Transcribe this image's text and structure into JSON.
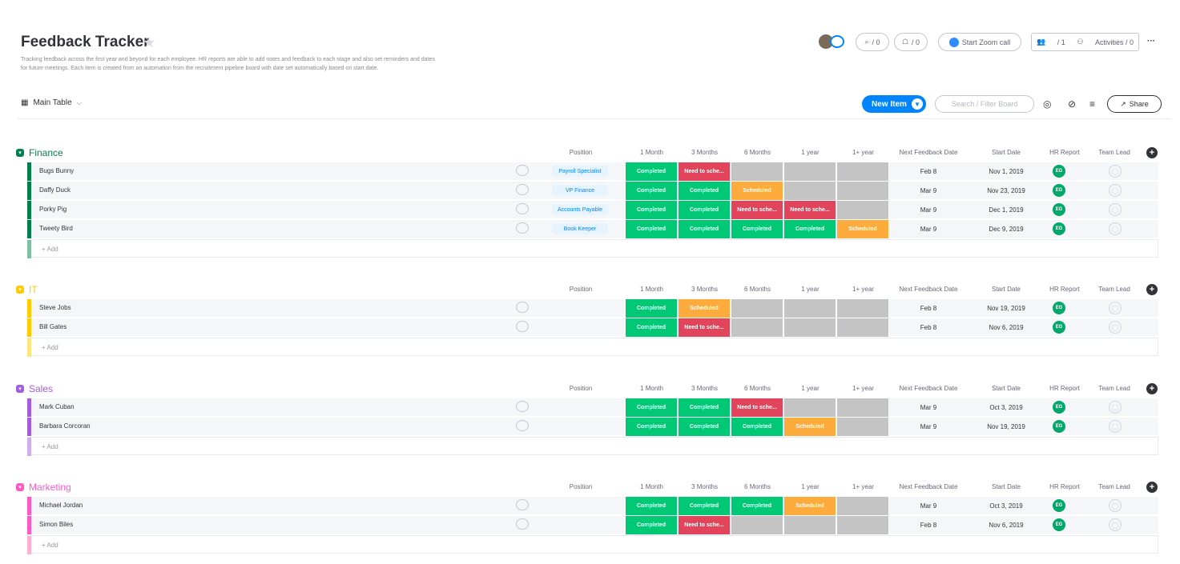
{
  "board": {
    "title": "Feedback Tracker",
    "description": "Tracking feedback across the first year and beyond for each employee. HR reports are able to add notes and feedback to each stage and also set reminders and dates for future meetings. Each item is created from an automation from the recruitment pipeline board with date set automatically based on start date.",
    "view_label": "Main Table"
  },
  "topbar": {
    "activity_count": "/ 0",
    "updates_count": "/ 0",
    "zoom_label": "Start Zoom call",
    "members_count": "/ 1",
    "activities_label": "Activities / 0",
    "more_label": "···"
  },
  "toolbar": {
    "new_item": "New Item",
    "search_placeholder": "Search / Filter Board",
    "share": "Share"
  },
  "columns": [
    "Position",
    "1 Month",
    "3 Months",
    "6 Months",
    "1 year",
    "1+ year",
    "Next Feedback Date",
    "Start Date",
    "HR Report",
    "Team Lead"
  ],
  "add_label": "+ Add",
  "status_colors": {
    "Completed": "#00c875",
    "Need to sche...": "#e2445c",
    "Scheduled": "#fdab3d",
    "": "#c4c4c4"
  },
  "groups": [
    {
      "name": "Finance",
      "color": "#037f4c",
      "light": "#81bfa5",
      "rows": [
        {
          "name": "Bugs Bunny",
          "position": "Payroll Specialist",
          "s": [
            "Completed",
            "Need to sche...",
            "",
            "",
            ""
          ],
          "nfd": "Feb 8",
          "start": "Nov 1, 2019",
          "hr": "EG"
        },
        {
          "name": "Daffy Duck",
          "position": "VP Finance",
          "s": [
            "Completed",
            "Completed",
            "Scheduled",
            "",
            ""
          ],
          "nfd": "Mar 9",
          "start": "Nov 23, 2019",
          "hr": "EG"
        },
        {
          "name": "Porky Pig",
          "position": "Accounts Payable",
          "s": [
            "Completed",
            "Completed",
            "Need to sche...",
            "Need to sche...",
            ""
          ],
          "nfd": "Mar 9",
          "start": "Dec 1, 2019",
          "hr": "EG"
        },
        {
          "name": "Tweety Bird",
          "position": "Book Keeper",
          "s": [
            "Completed",
            "Completed",
            "Completed",
            "Completed",
            "Scheduled"
          ],
          "nfd": "Mar 9",
          "start": "Dec 9, 2019",
          "hr": "EG"
        }
      ]
    },
    {
      "name": "IT",
      "color": "#ffcb00",
      "light": "#ffe580",
      "rows": [
        {
          "name": "Steve Jobs",
          "position": "",
          "s": [
            "Completed",
            "Scheduled",
            "",
            "",
            ""
          ],
          "nfd": "Feb 8",
          "start": "Nov 19, 2019",
          "hr": "EG"
        },
        {
          "name": "Bill Gates",
          "position": "",
          "s": [
            "Completed",
            "Need to sche...",
            "",
            "",
            ""
          ],
          "nfd": "Feb 8",
          "start": "Nov 6, 2019",
          "hr": "EG"
        }
      ]
    },
    {
      "name": "Sales",
      "color": "#a25ddc",
      "light": "#d0aeed",
      "rows": [
        {
          "name": "Mark Cuban",
          "position": "",
          "s": [
            "Completed",
            "Completed",
            "Need to sche...",
            "",
            ""
          ],
          "nfd": "Mar 9",
          "start": "Oct 3, 2019",
          "hr": "EG"
        },
        {
          "name": "Barbara Corcoran",
          "position": "",
          "s": [
            "Completed",
            "Completed",
            "Completed",
            "Scheduled",
            ""
          ],
          "nfd": "Mar 9",
          "start": "Nov 19, 2019",
          "hr": "EG"
        }
      ]
    },
    {
      "name": "Marketing",
      "color": "#ff5ac4",
      "light": "#ffadd2",
      "rows": [
        {
          "name": "Michael Jordan",
          "position": "",
          "s": [
            "Completed",
            "Completed",
            "Completed",
            "Scheduled",
            ""
          ],
          "nfd": "Mar 9",
          "start": "Oct 3, 2019",
          "hr": "EG"
        },
        {
          "name": "Simon Biles",
          "position": "",
          "s": [
            "Completed",
            "Need to sche...",
            "",
            "",
            ""
          ],
          "nfd": "Feb 8",
          "start": "Nov 6, 2019",
          "hr": "EG"
        }
      ]
    }
  ]
}
